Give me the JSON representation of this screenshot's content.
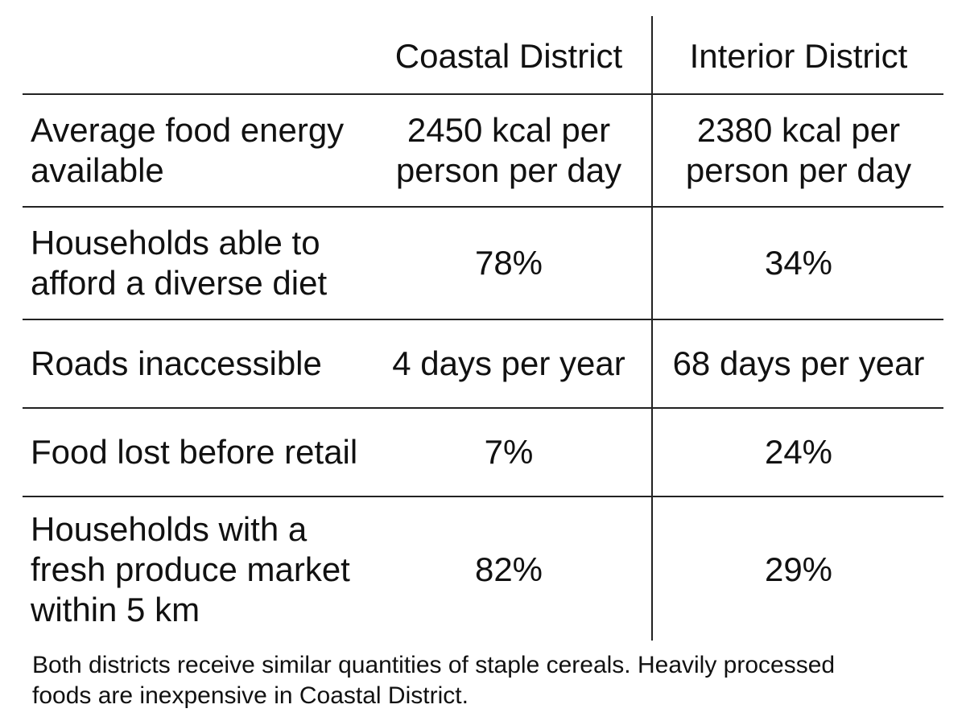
{
  "table": {
    "columns": [
      "",
      "Coastal District",
      "Interior District"
    ],
    "rows": [
      {
        "label": "Average food energy\navailable",
        "coastal": "2450 kcal per\nperson per day",
        "interior": "2380 kcal per\nperson per day"
      },
      {
        "label": "Households able to\nafford a diverse diet",
        "coastal": "78%",
        "interior": "34%"
      },
      {
        "label": "Roads inaccessible",
        "coastal": "4 days per year",
        "interior": "68 days per year"
      },
      {
        "label": "Food lost before retail",
        "coastal": "7%",
        "interior": "24%"
      },
      {
        "label": "Households with a\nfresh produce market\nwithin 5 km",
        "coastal": "82%",
        "interior": "29%"
      }
    ]
  },
  "note": "Both districts receive similar quantities of staple cereals. Heavily processed\nfoods are inexpensive in Coastal District."
}
